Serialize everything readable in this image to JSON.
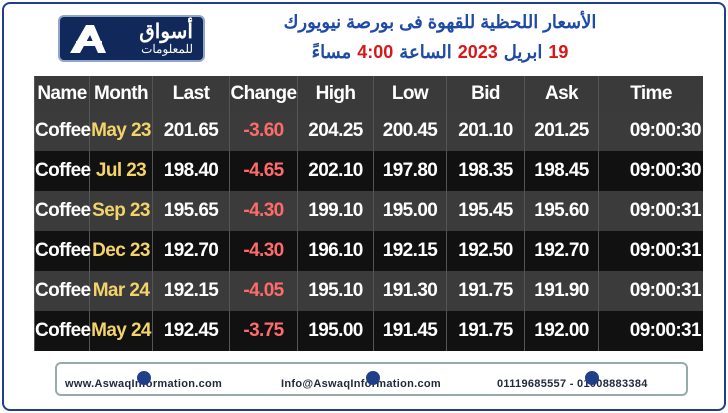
{
  "logo": {
    "name": "أسواق",
    "subtitle": "للمعلومات"
  },
  "header": {
    "title": "الأسعار اللحظية للقهوة فى بورصة نيويورك",
    "date_parts": [
      "19",
      "ابريل",
      "2023",
      "الساعة",
      "4:00",
      "مساءً"
    ]
  },
  "table": {
    "columns": [
      "Name",
      "Month",
      "Last",
      "Change",
      "High",
      "Low",
      "Bid",
      "Ask",
      "Time"
    ],
    "rows": [
      [
        "Coffee",
        "May 23",
        "201.65",
        "-3.60",
        "204.25",
        "200.45",
        "201.10",
        "201.25",
        "09:00:30"
      ],
      [
        "Coffee",
        "Jul 23",
        "198.40",
        "-4.65",
        "202.10",
        "197.80",
        "198.35",
        "198.45",
        "09:00:30"
      ],
      [
        "Coffee",
        "Sep 23",
        "195.65",
        "-4.30",
        "199.10",
        "195.00",
        "195.45",
        "195.60",
        "09:00:31"
      ],
      [
        "Coffee",
        "Dec 23",
        "192.70",
        "-4.30",
        "196.10",
        "192.15",
        "192.50",
        "192.70",
        "09:00:31"
      ],
      [
        "Coffee",
        "Mar 24",
        "192.15",
        "-4.05",
        "195.10",
        "191.30",
        "191.75",
        "191.90",
        "09:00:31"
      ],
      [
        "Coffee",
        "May 24",
        "192.45",
        "-3.75",
        "195.00",
        "191.45",
        "191.75",
        "192.00",
        "09:00:31"
      ]
    ]
  },
  "footer": {
    "website": "www.AswaqInformation.com",
    "email": "Info@AswaqInformation.com",
    "phones": "01119685557 - 01008883384"
  }
}
